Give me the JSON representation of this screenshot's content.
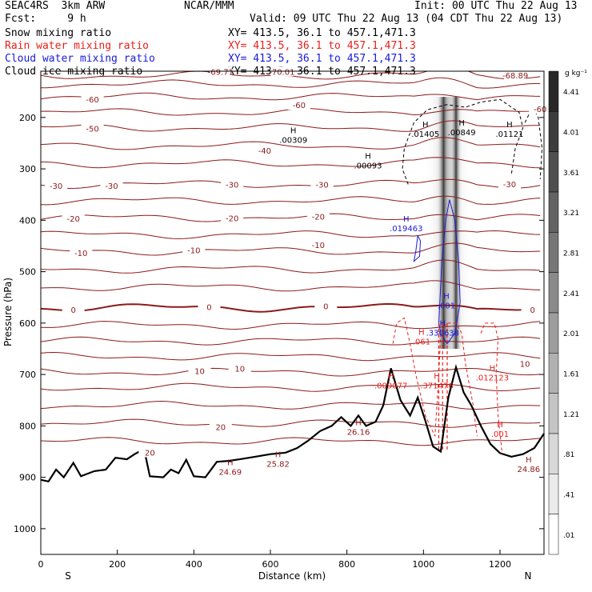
{
  "header": {
    "experiment": "SEAC4RS  3km ARW",
    "forecast": "Fcst:     9 h",
    "org": "NCAR/MMM",
    "init": "Init: 00 UTC Thu 22 Aug 13",
    "valid": "Valid: 09 UTC Thu 22 Aug 13 (04 CDT Thu 22 Aug 13)",
    "fields": [
      {
        "label": "Snow mixing ratio",
        "xy": "XY= 413.5, 36.1 to 457.1,471.3",
        "color": "#000000"
      },
      {
        "label": "Rain water mixing ratio",
        "xy": "XY= 413.5, 36.1 to 457.1,471.3",
        "color": "#e8201c"
      },
      {
        "label": "Cloud water mixing ratio",
        "xy": "XY= 413.5, 36.1 to 457.1,471.3",
        "color": "#1a1ad8"
      },
      {
        "label": "Cloud ice mixing ratio",
        "xy": "XY= 413.5, 36.1 to 457.1,471.3",
        "color": "#000000"
      }
    ]
  },
  "chart_data": {
    "type": "contour-cross-section",
    "ylabel": "Pressure (hPa)",
    "xlabel": "Distance (km)",
    "x_ticks": [
      0,
      200,
      400,
      600,
      800,
      1000,
      1200
    ],
    "xlim": [
      0,
      1315
    ],
    "y_ticks": [
      200,
      300,
      400,
      500,
      600,
      700,
      800,
      900,
      1000
    ],
    "ylim": [
      1050,
      110
    ],
    "x_end_labels": {
      "left": "S",
      "right": "N"
    },
    "colorbar": {
      "unit": "g kg⁻¹",
      "levels": [
        4.41,
        4.01,
        3.61,
        3.21,
        2.81,
        2.41,
        2.01,
        1.61,
        1.21,
        0.81,
        0.41,
        0.01
      ],
      "labels": [
        "4.41",
        "4.01",
        "3.61",
        "3.21",
        "2.81",
        "2.41",
        "2.01",
        "1.61",
        "1.21",
        ".81",
        ".41",
        ".01"
      ]
    },
    "temperature_contours_C": [
      {
        "label": "-70.01",
        "x": 630,
        "p": 112
      },
      {
        "label": "-69.71",
        "x": 470,
        "p": 112
      },
      {
        "label": "-68.89",
        "x": 1240,
        "p": 119
      },
      {
        "label": "-60",
        "x": 135,
        "p": 166
      },
      {
        "label": "-60",
        "x": 675,
        "p": 177
      },
      {
        "label": "-60",
        "x": 1305,
        "p": 185
      },
      {
        "label": "-50",
        "x": 135,
        "p": 223
      },
      {
        "label": "-40",
        "x": 585,
        "p": 266
      },
      {
        "label": "-30",
        "x": 40,
        "p": 334
      },
      {
        "label": "-30",
        "x": 185,
        "p": 334
      },
      {
        "label": "-30",
        "x": 500,
        "p": 332
      },
      {
        "label": "-30",
        "x": 735,
        "p": 332
      },
      {
        "label": "-30",
        "x": 1225,
        "p": 331
      },
      {
        "label": "-20",
        "x": 85,
        "p": 398
      },
      {
        "label": "-20",
        "x": 500,
        "p": 397
      },
      {
        "label": "-20",
        "x": 725,
        "p": 394
      },
      {
        "label": "-10",
        "x": 105,
        "p": 465
      },
      {
        "label": "-10",
        "x": 400,
        "p": 459
      },
      {
        "label": "-10",
        "x": 725,
        "p": 449
      },
      {
        "label": "0",
        "x": 85,
        "p": 575
      },
      {
        "label": "0",
        "x": 440,
        "p": 570
      },
      {
        "label": "0",
        "x": 745,
        "p": 568
      },
      {
        "label": "0",
        "x": 1285,
        "p": 575
      },
      {
        "label": "10",
        "x": 415,
        "p": 694
      },
      {
        "label": "10",
        "x": 520,
        "p": 690
      },
      {
        "label": "10",
        "x": 1265,
        "p": 680
      },
      {
        "label": "20",
        "x": 470,
        "p": 803
      },
      {
        "label": "20",
        "x": 285,
        "p": 853
      }
    ],
    "maxima": [
      {
        "label": ".00309",
        "x": 660,
        "p": 240
      },
      {
        "label": ".00093",
        "x": 855,
        "p": 290
      },
      {
        "label": ".01405",
        "x": 1005,
        "p": 228
      },
      {
        "label": ".00849",
        "x": 1100,
        "p": 225
      },
      {
        "label": ".01121",
        "x": 1225,
        "p": 228
      },
      {
        "label": ".019463",
        "x": 955,
        "p": 412
      },
      {
        "label": ".001",
        "x": 1060,
        "p": 562
      },
      {
        "label": ".330638",
        "x": 1050,
        "p": 615
      },
      {
        "label": ".061",
        "x": 995,
        "p": 632
      },
      {
        "label": ".009077",
        "x": 915,
        "p": 718
      },
      {
        "label": ".371476",
        "x": 1035,
        "p": 718
      },
      {
        "label": ".012123",
        "x": 1180,
        "p": 702
      },
      {
        "label": ".001",
        "x": 1200,
        "p": 812
      },
      {
        "label": "24.69",
        "x": 495,
        "p": 886
      },
      {
        "label": "25.82",
        "x": 620,
        "p": 870
      },
      {
        "label": "26.16",
        "x": 830,
        "p": 808
      },
      {
        "label": "24.86",
        "x": 1275,
        "p": 880
      }
    ],
    "terrain_pressure_hPa": [
      {
        "x": 0,
        "p": 905
      },
      {
        "x": 20,
        "p": 908
      },
      {
        "x": 40,
        "p": 885
      },
      {
        "x": 60,
        "p": 900
      },
      {
        "x": 85,
        "p": 872
      },
      {
        "x": 105,
        "p": 898
      },
      {
        "x": 140,
        "p": 888
      },
      {
        "x": 170,
        "p": 885
      },
      {
        "x": 195,
        "p": 862
      },
      {
        "x": 225,
        "p": 865
      },
      {
        "x": 245,
        "p": 855
      },
      {
        "x": 270,
        "p": 845
      },
      {
        "x": 285,
        "p": 898
      },
      {
        "x": 320,
        "p": 900
      },
      {
        "x": 340,
        "p": 885
      },
      {
        "x": 360,
        "p": 892
      },
      {
        "x": 380,
        "p": 866
      },
      {
        "x": 400,
        "p": 898
      },
      {
        "x": 430,
        "p": 900
      },
      {
        "x": 460,
        "p": 870
      },
      {
        "x": 490,
        "p": 868
      },
      {
        "x": 520,
        "p": 865
      },
      {
        "x": 560,
        "p": 860
      },
      {
        "x": 600,
        "p": 855
      },
      {
        "x": 640,
        "p": 852
      },
      {
        "x": 670,
        "p": 843
      },
      {
        "x": 700,
        "p": 828
      },
      {
        "x": 730,
        "p": 810
      },
      {
        "x": 760,
        "p": 800
      },
      {
        "x": 785,
        "p": 783
      },
      {
        "x": 810,
        "p": 800
      },
      {
        "x": 830,
        "p": 780
      },
      {
        "x": 850,
        "p": 800
      },
      {
        "x": 875,
        "p": 792
      },
      {
        "x": 895,
        "p": 760
      },
      {
        "x": 915,
        "p": 688
      },
      {
        "x": 940,
        "p": 750
      },
      {
        "x": 965,
        "p": 780
      },
      {
        "x": 985,
        "p": 745
      },
      {
        "x": 1005,
        "p": 790
      },
      {
        "x": 1025,
        "p": 840
      },
      {
        "x": 1045,
        "p": 850
      },
      {
        "x": 1065,
        "p": 745
      },
      {
        "x": 1085,
        "p": 686
      },
      {
        "x": 1105,
        "p": 735
      },
      {
        "x": 1125,
        "p": 760
      },
      {
        "x": 1150,
        "p": 800
      },
      {
        "x": 1175,
        "p": 835
      },
      {
        "x": 1200,
        "p": 853
      },
      {
        "x": 1230,
        "p": 860
      },
      {
        "x": 1260,
        "p": 855
      },
      {
        "x": 1290,
        "p": 843
      },
      {
        "x": 1315,
        "p": 815
      }
    ]
  }
}
